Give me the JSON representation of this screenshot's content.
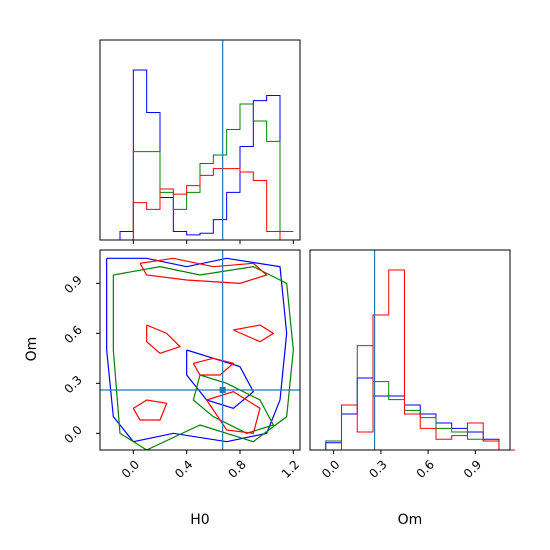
{
  "chart_data": [
    {
      "type": "histogram",
      "panel": "H0 marginal",
      "xlim": [
        -0.25,
        1.25
      ],
      "truth_x": 0.67,
      "series": [
        {
          "color": "#0000ff",
          "bins": [
            -0.1,
            0.0,
            0.1,
            0.2,
            0.3,
            0.4,
            0.5,
            0.6,
            0.7,
            0.8,
            0.9,
            1.0,
            1.1
          ],
          "counts": [
            0.05,
            1.0,
            0.75,
            0.25,
            0.05,
            0.03,
            0.04,
            0.12,
            0.28,
            0.55,
            0.82,
            0.85,
            0.0
          ]
        },
        {
          "color": "#008000",
          "bins": [
            -0.1,
            0.0,
            0.1,
            0.2,
            0.3,
            0.4,
            0.5,
            0.6,
            0.7,
            0.8,
            0.9,
            1.0,
            1.1
          ],
          "counts": [
            0.0,
            0.52,
            0.52,
            0.28,
            0.18,
            0.28,
            0.45,
            0.5,
            0.65,
            0.8,
            0.7,
            0.58,
            0.05
          ]
        },
        {
          "color": "#ff0000",
          "bins": [
            -0.1,
            0.0,
            0.1,
            0.2,
            0.3,
            0.4,
            0.5,
            0.6,
            0.7,
            0.8,
            0.9,
            1.0,
            1.1
          ],
          "counts": [
            0.0,
            0.22,
            0.18,
            0.3,
            0.27,
            0.32,
            0.38,
            0.42,
            0.42,
            0.4,
            0.35,
            0.05,
            0.0
          ]
        }
      ]
    },
    {
      "type": "contour",
      "panel": "H0 vs Om joint",
      "xlabel": "H0",
      "ylabel": "Om",
      "xlim": [
        -0.25,
        1.25
      ],
      "ylim": [
        -0.1,
        1.1
      ],
      "xticks": [
        "0.0",
        "0.4",
        "0.8",
        "1.2"
      ],
      "yticks": [
        "0.0",
        "0.3",
        "0.6",
        "0.9"
      ],
      "truth": [
        0.67,
        0.26
      ],
      "contours": [
        {
          "color": "#0000ff",
          "level": "outer",
          "points": [
            [
              -0.2,
              1.05
            ],
            [
              0.1,
              1.05
            ],
            [
              0.4,
              1.0
            ],
            [
              0.7,
              1.05
            ],
            [
              1.1,
              1.0
            ],
            [
              1.15,
              0.6
            ],
            [
              1.1,
              0.2
            ],
            [
              1.0,
              0.0
            ],
            [
              0.7,
              -0.05
            ],
            [
              0.3,
              0.0
            ],
            [
              0.0,
              -0.05
            ],
            [
              -0.15,
              0.1
            ],
            [
              -0.2,
              0.5
            ],
            [
              -0.2,
              1.05
            ]
          ]
        },
        {
          "color": "#0000ff",
          "level": "inner",
          "points": [
            [
              0.4,
              0.5
            ],
            [
              0.6,
              0.45
            ],
            [
              0.8,
              0.4
            ],
            [
              0.9,
              0.25
            ],
            [
              0.75,
              0.15
            ],
            [
              0.55,
              0.2
            ],
            [
              0.4,
              0.35
            ],
            [
              0.4,
              0.5
            ]
          ]
        },
        {
          "color": "#008000",
          "level": "outer",
          "points": [
            [
              -0.15,
              0.95
            ],
            [
              0.2,
              1.0
            ],
            [
              0.5,
              0.95
            ],
            [
              0.9,
              1.0
            ],
            [
              1.15,
              0.9
            ],
            [
              1.2,
              0.5
            ],
            [
              1.15,
              0.1
            ],
            [
              0.9,
              -0.05
            ],
            [
              0.5,
              0.05
            ],
            [
              0.1,
              -0.1
            ],
            [
              -0.1,
              0.0
            ],
            [
              -0.15,
              0.5
            ],
            [
              -0.15,
              0.95
            ]
          ]
        },
        {
          "color": "#008000",
          "level": "inner",
          "points": [
            [
              0.5,
              0.35
            ],
            [
              0.7,
              0.3
            ],
            [
              0.95,
              0.2
            ],
            [
              1.05,
              0.05
            ],
            [
              0.85,
              0.0
            ],
            [
              0.6,
              0.1
            ],
            [
              0.45,
              0.2
            ],
            [
              0.5,
              0.35
            ]
          ]
        },
        {
          "color": "#ff0000",
          "level": "blob",
          "points": [
            [
              0.05,
              1.02
            ],
            [
              0.3,
              1.05
            ],
            [
              0.6,
              1.0
            ],
            [
              0.9,
              1.02
            ],
            [
              1.0,
              0.95
            ],
            [
              0.8,
              0.9
            ],
            [
              0.4,
              0.92
            ],
            [
              0.1,
              0.95
            ],
            [
              0.05,
              1.02
            ]
          ]
        },
        {
          "color": "#ff0000",
          "level": "blob",
          "points": [
            [
              0.1,
              0.65
            ],
            [
              0.25,
              0.6
            ],
            [
              0.35,
              0.52
            ],
            [
              0.2,
              0.48
            ],
            [
              0.1,
              0.55
            ],
            [
              0.1,
              0.65
            ]
          ]
        },
        {
          "color": "#ff0000",
          "level": "blob",
          "points": [
            [
              0.45,
              0.42
            ],
            [
              0.6,
              0.45
            ],
            [
              0.75,
              0.42
            ],
            [
              0.65,
              0.35
            ],
            [
              0.5,
              0.35
            ],
            [
              0.45,
              0.42
            ]
          ]
        },
        {
          "color": "#ff0000",
          "level": "blob",
          "points": [
            [
              0.0,
              0.15
            ],
            [
              0.1,
              0.2
            ],
            [
              0.25,
              0.18
            ],
            [
              0.2,
              0.08
            ],
            [
              0.05,
              0.08
            ],
            [
              0.0,
              0.15
            ]
          ]
        },
        {
          "color": "#ff0000",
          "level": "blob",
          "points": [
            [
              0.55,
              0.2
            ],
            [
              0.75,
              0.25
            ],
            [
              0.95,
              0.15
            ],
            [
              0.9,
              0.0
            ],
            [
              0.7,
              0.02
            ],
            [
              0.55,
              0.2
            ]
          ]
        },
        {
          "color": "#ff0000",
          "level": "blob",
          "points": [
            [
              0.75,
              0.62
            ],
            [
              0.95,
              0.65
            ],
            [
              1.05,
              0.6
            ],
            [
              0.95,
              0.55
            ],
            [
              0.75,
              0.62
            ]
          ]
        }
      ]
    },
    {
      "type": "histogram",
      "panel": "Om marginal",
      "xlabel": "Om",
      "xlim": [
        -0.15,
        1.12
      ],
      "xticks": [
        "0.0",
        "0.3",
        "0.6",
        "0.9"
      ],
      "truth_x": 0.26,
      "series": [
        {
          "color": "#0000ff",
          "bins": [
            -0.05,
            0.05,
            0.15,
            0.25,
            0.35,
            0.45,
            0.55,
            0.65,
            0.75,
            0.85,
            0.95,
            1.05
          ],
          "counts": [
            0.04,
            0.2,
            0.4,
            0.3,
            0.3,
            0.25,
            0.2,
            0.15,
            0.12,
            0.1,
            0.06,
            0.0
          ]
        },
        {
          "color": "#008000",
          "bins": [
            -0.05,
            0.05,
            0.15,
            0.25,
            0.35,
            0.45,
            0.55,
            0.65,
            0.75,
            0.85,
            0.95,
            1.05
          ],
          "counts": [
            0.05,
            0.25,
            0.58,
            0.38,
            0.28,
            0.22,
            0.18,
            0.12,
            0.1,
            0.06,
            0.05,
            0.0
          ]
        },
        {
          "color": "#ff0000",
          "bins": [
            -0.05,
            0.05,
            0.15,
            0.25,
            0.35,
            0.45,
            0.55,
            0.65,
            0.75,
            0.85,
            0.95,
            1.05
          ],
          "counts": [
            0.0,
            0.25,
            0.1,
            0.75,
            1.0,
            0.2,
            0.12,
            0.06,
            0.08,
            0.15,
            0.05,
            0.0
          ]
        }
      ]
    }
  ]
}
